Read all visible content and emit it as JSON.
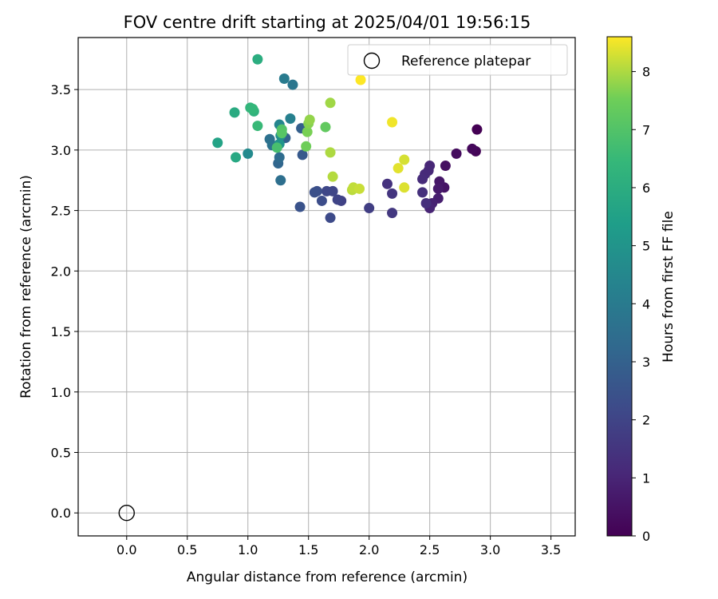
{
  "chart_data": {
    "type": "scatter",
    "title": "FOV centre drift starting at 2025/04/01 19:56:15",
    "xlabel": "Angular distance from reference (arcmin)",
    "ylabel": "Rotation from reference (arcmin)",
    "xlim": [
      -0.4,
      3.7
    ],
    "ylim": [
      -0.19,
      3.93
    ],
    "xticks": [
      "0.0",
      "0.5",
      "1.0",
      "1.5",
      "2.0",
      "2.5",
      "3.0",
      "3.5"
    ],
    "yticks": [
      "0.0",
      "0.5",
      "1.0",
      "1.5",
      "2.0",
      "2.5",
      "3.0",
      "3.5"
    ],
    "grid": true,
    "legend": {
      "position": "top-right",
      "label": "Reference platepar"
    },
    "reference_point": {
      "x": 0.0,
      "y": 0.0,
      "marker": "open-circle"
    },
    "colorbar": {
      "label": "Hours from first FF file",
      "range": [
        0,
        8.6
      ],
      "ticks": [
        "0",
        "1",
        "2",
        "3",
        "4",
        "5",
        "6",
        "7",
        "8"
      ],
      "colormap": "viridis"
    },
    "points": [
      {
        "x": 2.89,
        "y": 3.17,
        "t": 0.0
      },
      {
        "x": 2.88,
        "y": 2.99,
        "t": 0.1
      },
      {
        "x": 2.85,
        "y": 3.01,
        "t": 0.2
      },
      {
        "x": 2.72,
        "y": 2.97,
        "t": 0.3
      },
      {
        "x": 2.63,
        "y": 2.87,
        "t": 0.4
      },
      {
        "x": 2.62,
        "y": 2.69,
        "t": 0.5
      },
      {
        "x": 2.58,
        "y": 2.74,
        "t": 0.6
      },
      {
        "x": 2.57,
        "y": 2.68,
        "t": 0.7
      },
      {
        "x": 2.57,
        "y": 2.6,
        "t": 0.8
      },
      {
        "x": 2.52,
        "y": 2.56,
        "t": 0.9
      },
      {
        "x": 2.5,
        "y": 2.52,
        "t": 1.0
      },
      {
        "x": 2.5,
        "y": 2.87,
        "t": 1.05
      },
      {
        "x": 2.49,
        "y": 2.83,
        "t": 1.1
      },
      {
        "x": 2.46,
        "y": 2.8,
        "t": 1.15
      },
      {
        "x": 2.44,
        "y": 2.76,
        "t": 1.2
      },
      {
        "x": 2.47,
        "y": 2.56,
        "t": 1.3
      },
      {
        "x": 2.44,
        "y": 2.65,
        "t": 1.35
      },
      {
        "x": 2.15,
        "y": 2.72,
        "t": 1.4
      },
      {
        "x": 2.19,
        "y": 2.64,
        "t": 1.5
      },
      {
        "x": 2.19,
        "y": 2.48,
        "t": 1.6
      },
      {
        "x": 2.0,
        "y": 2.52,
        "t": 1.8
      },
      {
        "x": 1.77,
        "y": 2.58,
        "t": 1.9
      },
      {
        "x": 1.74,
        "y": 2.59,
        "t": 2.0
      },
      {
        "x": 1.7,
        "y": 2.66,
        "t": 2.05
      },
      {
        "x": 1.65,
        "y": 2.66,
        "t": 2.1
      },
      {
        "x": 1.68,
        "y": 2.44,
        "t": 2.2
      },
      {
        "x": 1.61,
        "y": 2.58,
        "t": 2.3
      },
      {
        "x": 1.57,
        "y": 2.66,
        "t": 2.35
      },
      {
        "x": 1.55,
        "y": 2.65,
        "t": 2.4
      },
      {
        "x": 1.43,
        "y": 2.53,
        "t": 2.5
      },
      {
        "x": 1.45,
        "y": 2.96,
        "t": 2.7
      },
      {
        "x": 1.44,
        "y": 3.18,
        "t": 2.9
      },
      {
        "x": 1.31,
        "y": 3.1,
        "t": 3.0
      },
      {
        "x": 1.25,
        "y": 2.89,
        "t": 3.2
      },
      {
        "x": 1.26,
        "y": 2.94,
        "t": 3.4
      },
      {
        "x": 1.27,
        "y": 2.75,
        "t": 3.5
      },
      {
        "x": 1.18,
        "y": 3.09,
        "t": 3.6
      },
      {
        "x": 1.2,
        "y": 3.04,
        "t": 3.7
      },
      {
        "x": 1.37,
        "y": 3.54,
        "t": 3.8
      },
      {
        "x": 1.3,
        "y": 3.59,
        "t": 4.0
      },
      {
        "x": 1.35,
        "y": 3.26,
        "t": 4.2
      },
      {
        "x": 1.26,
        "y": 3.21,
        "t": 4.4
      },
      {
        "x": 1.0,
        "y": 2.97,
        "t": 4.6
      },
      {
        "x": 1.27,
        "y": 3.12,
        "t": 4.8
      },
      {
        "x": 1.26,
        "y": 3.05,
        "t": 5.0
      },
      {
        "x": 0.75,
        "y": 3.06,
        "t": 5.6
      },
      {
        "x": 0.9,
        "y": 2.94,
        "t": 5.8
      },
      {
        "x": 0.89,
        "y": 3.31,
        "t": 5.9
      },
      {
        "x": 1.08,
        "y": 3.75,
        "t": 6.0
      },
      {
        "x": 1.05,
        "y": 3.32,
        "t": 6.2
      },
      {
        "x": 1.02,
        "y": 3.35,
        "t": 6.3
      },
      {
        "x": 1.04,
        "y": 3.34,
        "t": 6.4
      },
      {
        "x": 1.08,
        "y": 3.2,
        "t": 6.5
      },
      {
        "x": 1.24,
        "y": 3.02,
        "t": 6.8
      },
      {
        "x": 1.28,
        "y": 3.17,
        "t": 7.0
      },
      {
        "x": 1.28,
        "y": 3.14,
        "t": 7.1
      },
      {
        "x": 1.64,
        "y": 3.19,
        "t": 7.3
      },
      {
        "x": 1.48,
        "y": 3.03,
        "t": 7.5
      },
      {
        "x": 1.49,
        "y": 3.15,
        "t": 7.6
      },
      {
        "x": 1.5,
        "y": 3.22,
        "t": 7.7
      },
      {
        "x": 1.51,
        "y": 3.25,
        "t": 7.8
      },
      {
        "x": 1.68,
        "y": 3.39,
        "t": 7.9
      },
      {
        "x": 1.68,
        "y": 2.98,
        "t": 8.0
      },
      {
        "x": 1.7,
        "y": 2.78,
        "t": 8.05
      },
      {
        "x": 1.86,
        "y": 2.67,
        "t": 8.1
      },
      {
        "x": 1.87,
        "y": 2.69,
        "t": 8.15
      },
      {
        "x": 1.92,
        "y": 2.68,
        "t": 8.2
      },
      {
        "x": 2.29,
        "y": 2.92,
        "t": 8.3
      },
      {
        "x": 2.29,
        "y": 2.69,
        "t": 8.35
      },
      {
        "x": 2.24,
        "y": 2.85,
        "t": 8.4
      },
      {
        "x": 2.19,
        "y": 3.23,
        "t": 8.5
      },
      {
        "x": 1.93,
        "y": 3.58,
        "t": 8.6
      }
    ]
  }
}
